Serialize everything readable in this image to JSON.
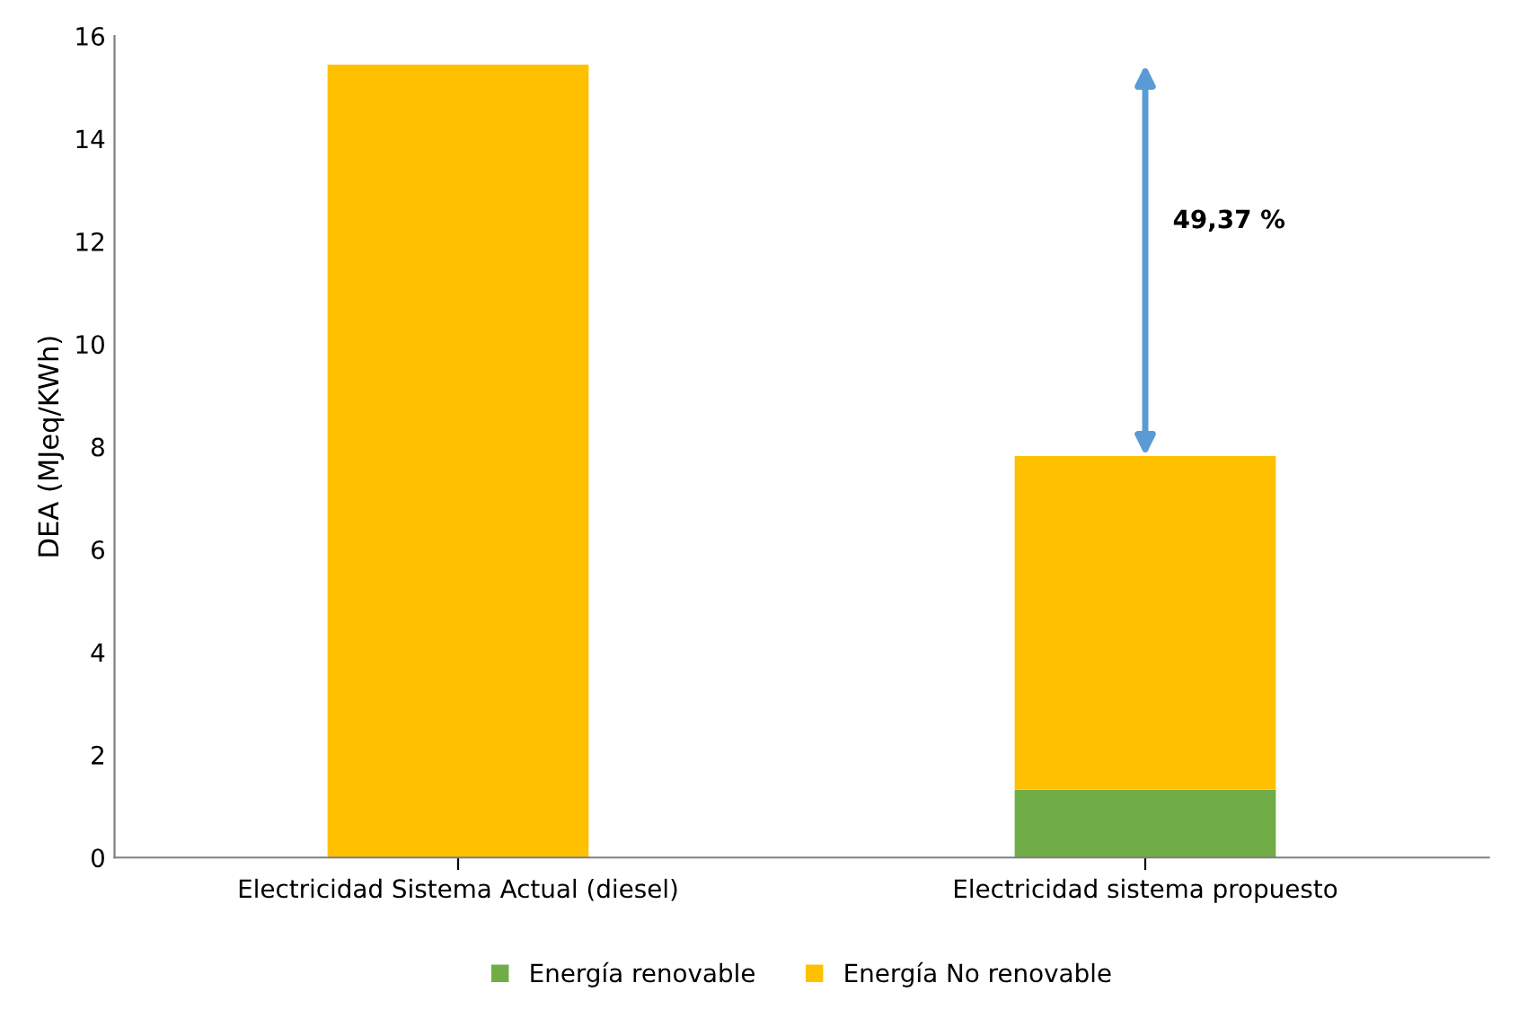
{
  "chart_data": {
    "type": "bar",
    "stacked": true,
    "ylabel": "DEA (MJeq/KWh)",
    "categories": [
      "Electricidad Sistema Actual (diesel)",
      "Electricidad sistema propuesto"
    ],
    "series": [
      {
        "name": "Energía renovable",
        "color": "#70ad47",
        "values": [
          0,
          1.32
        ]
      },
      {
        "name": "Energía No renovable",
        "color": "#ffc000",
        "values": [
          15.44,
          6.5
        ]
      }
    ],
    "ylim": [
      0,
      16
    ],
    "yticks": [
      0,
      2,
      4,
      6,
      8,
      10,
      12,
      14,
      16
    ],
    "grid": false,
    "legend": "bottom",
    "annotations": [
      "49,37 %"
    ]
  }
}
